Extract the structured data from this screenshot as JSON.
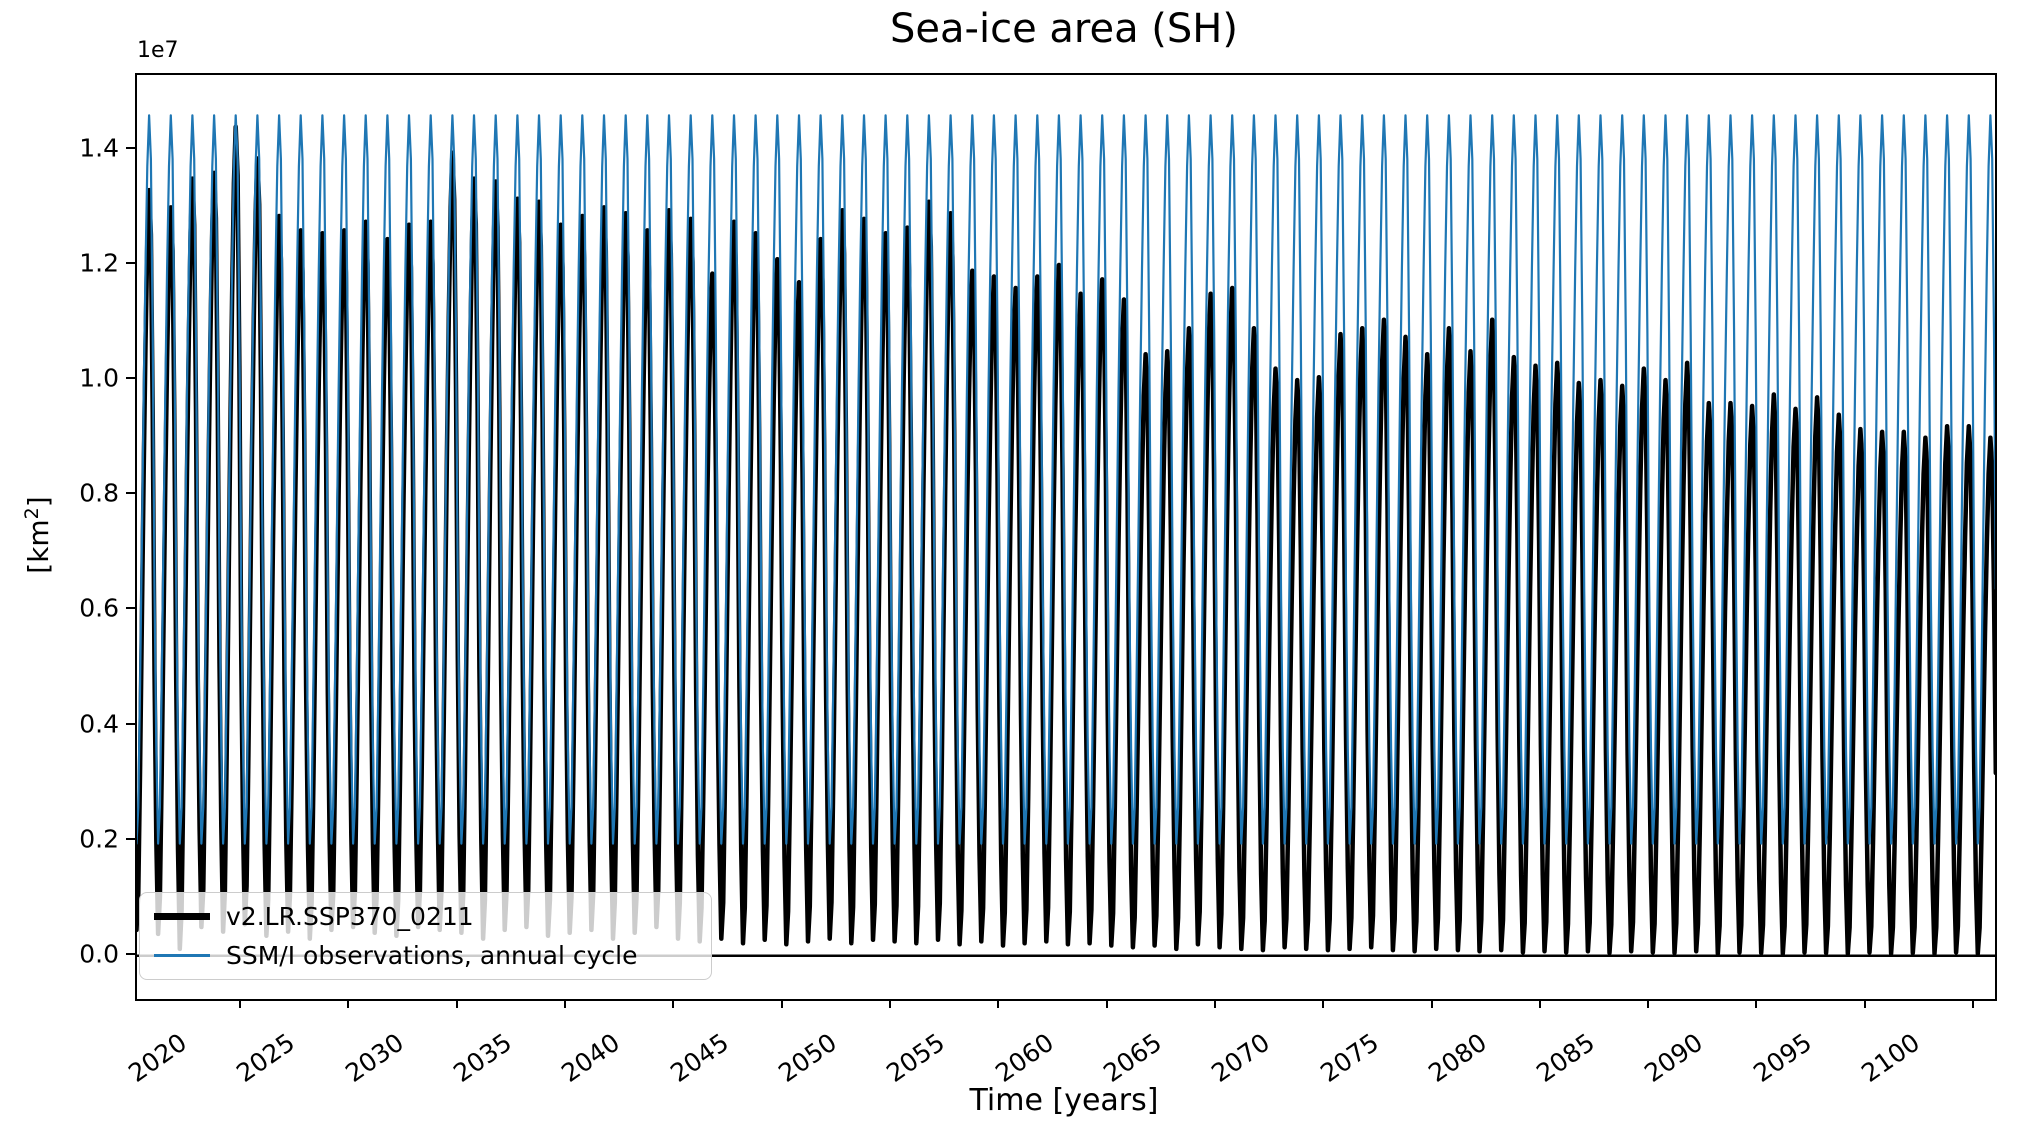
{
  "chart_data": {
    "type": "line",
    "title": "Sea-ice area (SH)",
    "xlabel": "Time [years]",
    "ylabel": "[km²]",
    "y_axis_offset_label": "1e7",
    "xlim": [
      2015.15,
      2100.92
    ],
    "ylim_km2": [
      -750000,
      15300000
    ],
    "value_unit": 10000000,
    "grid": false,
    "legend_position": "lower left",
    "x_ticks": [
      2020,
      2025,
      2030,
      2035,
      2040,
      2045,
      2050,
      2055,
      2060,
      2065,
      2070,
      2075,
      2080,
      2085,
      2090,
      2095,
      2100
    ],
    "y_ticks": {
      "values_1e7": [
        0.0,
        0.2,
        0.4,
        0.6,
        0.8,
        1.0,
        1.2,
        1.4
      ],
      "labels": [
        "0.0",
        "0.2",
        "0.4",
        "0.6",
        "0.8",
        "1.0",
        "1.2",
        "1.4"
      ]
    },
    "zero_line": true,
    "seasonal_shape_monthly_weights": [
      0.13,
      0.0,
      0.05,
      0.22,
      0.42,
      0.62,
      0.79,
      0.93,
      1.0,
      0.94,
      0.7,
      0.35
    ],
    "series": [
      {
        "name": "v2.LR.SSP370_0211",
        "color": "#000000",
        "linewidth": 4.5,
        "year_start": 2015,
        "year_end": 2100,
        "annual_max_1e7": [
          1.33,
          1.3,
          1.35,
          1.36,
          1.44,
          1.385,
          1.285,
          1.26,
          1.255,
          1.26,
          1.275,
          1.245,
          1.27,
          1.275,
          1.395,
          1.35,
          1.345,
          1.315,
          1.31,
          1.27,
          1.285,
          1.3,
          1.29,
          1.26,
          1.295,
          1.28,
          1.185,
          1.275,
          1.255,
          1.21,
          1.17,
          1.245,
          1.295,
          1.28,
          1.255,
          1.265,
          1.31,
          1.29,
          1.19,
          1.18,
          1.16,
          1.18,
          1.2,
          1.15,
          1.175,
          1.14,
          1.045,
          1.05,
          1.09,
          1.15,
          1.16,
          1.09,
          1.02,
          1.0,
          1.005,
          1.08,
          1.09,
          1.105,
          1.075,
          1.045,
          1.09,
          1.05,
          1.105,
          1.04,
          1.025,
          1.03,
          0.995,
          1.0,
          0.99,
          1.02,
          1.0,
          1.03,
          0.96,
          0.96,
          0.955,
          0.975,
          0.95,
          0.97,
          0.94,
          0.915,
          0.91,
          0.91,
          0.9,
          0.92,
          0.92,
          0.9
        ],
        "annual_min_1e7": [
          0.045,
          0.038,
          0.012,
          0.05,
          0.042,
          0.055,
          0.035,
          0.042,
          0.03,
          0.045,
          0.05,
          0.04,
          0.035,
          0.05,
          0.045,
          0.04,
          0.03,
          0.045,
          0.05,
          0.035,
          0.04,
          0.045,
          0.03,
          0.04,
          0.05,
          0.03,
          0.025,
          0.03,
          0.022,
          0.028,
          0.02,
          0.025,
          0.03,
          0.022,
          0.028,
          0.025,
          0.022,
          0.028,
          0.02,
          0.025,
          0.018,
          0.022,
          0.025,
          0.02,
          0.022,
          0.018,
          0.015,
          0.018,
          0.012,
          0.02,
          0.015,
          0.012,
          0.01,
          0.015,
          0.012,
          0.01,
          0.012,
          0.015,
          0.01,
          0.008,
          0.012,
          0.01,
          0.008,
          0.01,
          0.006,
          0.008,
          0.006,
          0.008,
          0.005,
          0.008,
          0.006,
          0.005,
          0.008,
          0.004,
          0.006,
          0.005,
          0.004,
          0.006,
          0.005,
          0.004,
          0.006,
          0.004,
          0.005,
          0.004,
          0.006,
          0.004
        ]
      },
      {
        "name": "SSM/I observations, annual cycle",
        "color": "#1f77b4",
        "linewidth": 2.2,
        "year_start": 2015,
        "year_end": 2100,
        "annual_max_const_1e7": 1.46,
        "annual_min_const_1e7": 0.195
      }
    ]
  },
  "legend": {
    "items": [
      {
        "label": "v2.LR.SSP370_0211",
        "color": "#000000"
      },
      {
        "label": "SSM/I observations, annual cycle",
        "color": "#1f77b4"
      }
    ]
  }
}
